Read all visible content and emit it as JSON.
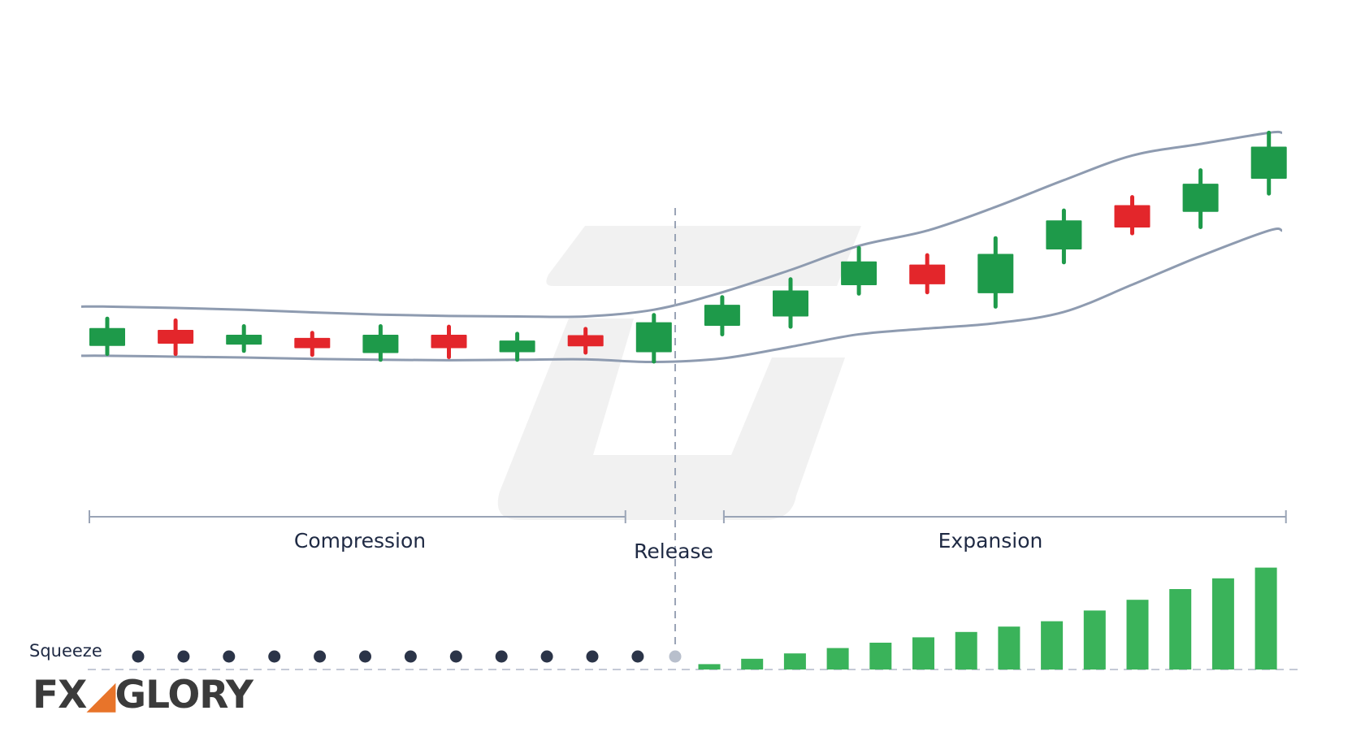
{
  "colors": {
    "bull": "#1e9a4a",
    "bear": "#e3262b",
    "band": "#8e9bb0",
    "text": "#1f2a44",
    "dot": "#2b3448",
    "dot_release": "#b8bfcc",
    "volume": "#3ab35a",
    "watermark": "#ececec"
  },
  "labels": {
    "compression": "Compression",
    "release": "Release",
    "expansion": "Expansion",
    "squeeze": "Squeeze"
  },
  "logo": {
    "text_1": "FX",
    "text_2": "GLORY",
    "accent_color": "#e8742a"
  },
  "chart_data": {
    "type": "candlestick",
    "title": "",
    "xlabel": "",
    "ylabel": "",
    "candles": [
      {
        "dir": "up",
        "open": 33.5,
        "close": 37.5,
        "high": 39.6,
        "low": 31.7
      },
      {
        "dir": "down",
        "open": 37.1,
        "close": 34.0,
        "high": 39.2,
        "low": 31.7
      },
      {
        "dir": "up",
        "open": 33.8,
        "close": 36.0,
        "high": 37.9,
        "low": 32.4
      },
      {
        "dir": "down",
        "open": 35.3,
        "close": 33.0,
        "high": 36.4,
        "low": 31.5
      },
      {
        "dir": "up",
        "open": 31.9,
        "close": 36.0,
        "high": 37.9,
        "low": 30.4
      },
      {
        "dir": "down",
        "open": 36.0,
        "close": 33.0,
        "high": 37.8,
        "low": 31.0
      },
      {
        "dir": "up",
        "open": 32.1,
        "close": 34.7,
        "high": 36.2,
        "low": 30.4
      },
      {
        "dir": "down",
        "open": 35.9,
        "close": 33.4,
        "high": 37.3,
        "low": 32.0
      },
      {
        "dir": "up",
        "open": 32.1,
        "close": 38.8,
        "high": 40.4,
        "low": 30.0
      },
      {
        "dir": "up",
        "open": 38.0,
        "close": 42.7,
        "high": 44.4,
        "low": 36.1
      },
      {
        "dir": "up",
        "open": 40.1,
        "close": 45.9,
        "high": 48.4,
        "low": 37.8
      },
      {
        "dir": "up",
        "open": 47.1,
        "close": 52.4,
        "high": 55.4,
        "low": 45.2
      },
      {
        "dir": "down",
        "open": 51.7,
        "close": 47.3,
        "high": 53.8,
        "low": 45.5
      },
      {
        "dir": "up",
        "open": 45.3,
        "close": 54.1,
        "high": 57.6,
        "low": 42.3
      },
      {
        "dir": "up",
        "open": 55.1,
        "close": 61.6,
        "high": 63.8,
        "low": 52.2
      },
      {
        "dir": "down",
        "open": 65.0,
        "close": 60.0,
        "high": 66.8,
        "low": 58.7
      },
      {
        "dir": "up",
        "open": 63.5,
        "close": 69.8,
        "high": 72.8,
        "low": 60.1
      },
      {
        "dir": "up",
        "open": 70.9,
        "close": 78.1,
        "high": 81.2,
        "low": 67.6
      }
    ],
    "upper_band": [
      42.3,
      42.0,
      41.6,
      41.0,
      40.5,
      40.2,
      40.1,
      40.1,
      41.6,
      45.5,
      50.5,
      55.9,
      59.3,
      64.6,
      70.6,
      76.1,
      78.7,
      81.2
    ],
    "lower_band": [
      31.3,
      31.1,
      30.9,
      30.6,
      30.4,
      30.3,
      30.4,
      30.5,
      29.9,
      30.7,
      33.3,
      36.1,
      37.4,
      38.6,
      41.1,
      47.2,
      53.6,
      59.3
    ],
    "ylim": [
      0,
      100
    ],
    "phases": {
      "compression_range": [
        0,
        7.5
      ],
      "release_index": 8.25,
      "expansion_range": [
        9,
        17
      ]
    },
    "squeeze_dots": {
      "count": 12,
      "release_dot": true
    },
    "momentum_bars": [
      1,
      2,
      3,
      4,
      5,
      6,
      7,
      8,
      9,
      11,
      13,
      15,
      17,
      19
    ]
  }
}
